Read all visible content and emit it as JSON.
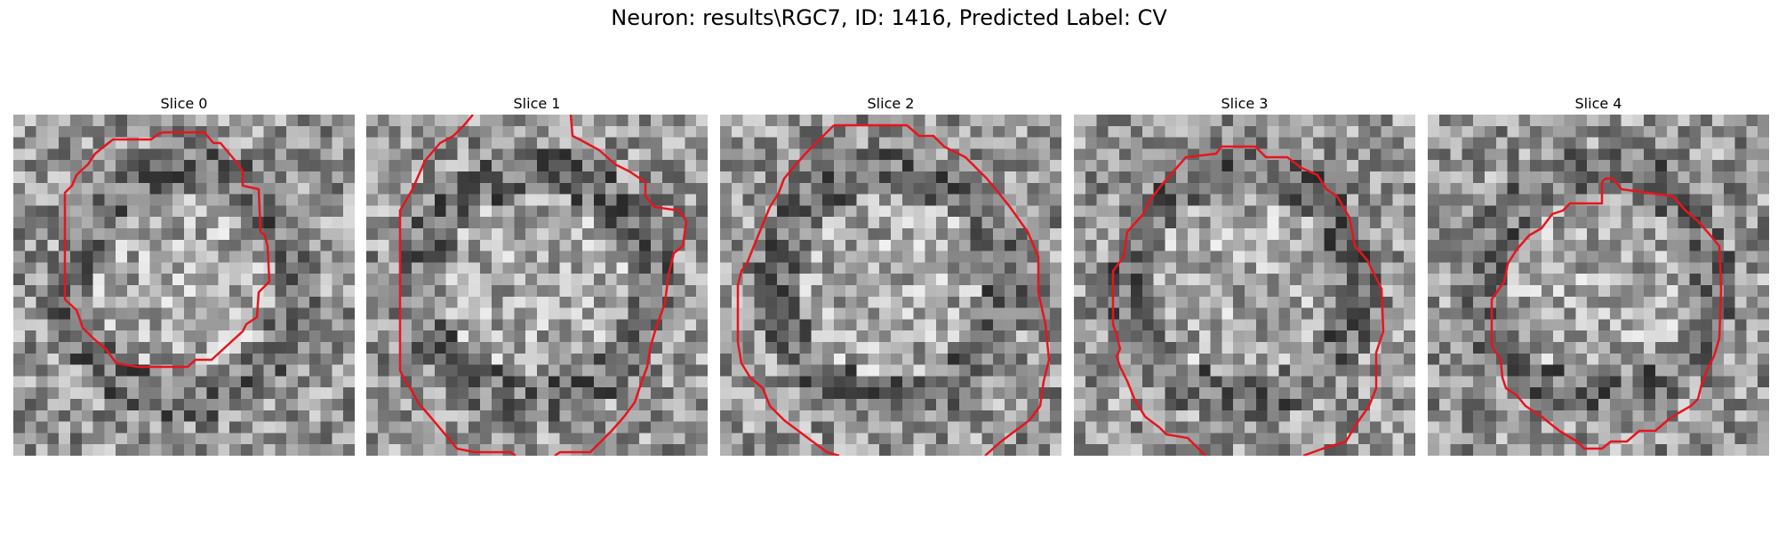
{
  "figure": {
    "title": "Neuron: results\\RGC7, ID: 1416, Predicted Label: CV"
  },
  "panels": [
    {
      "title": "Slice 0"
    },
    {
      "title": "Slice 1"
    },
    {
      "title": "Slice 2"
    },
    {
      "title": "Slice 3"
    },
    {
      "title": "Slice 4"
    }
  ],
  "style": {
    "contour_color": "#e8141e",
    "colormap": "gray"
  }
}
